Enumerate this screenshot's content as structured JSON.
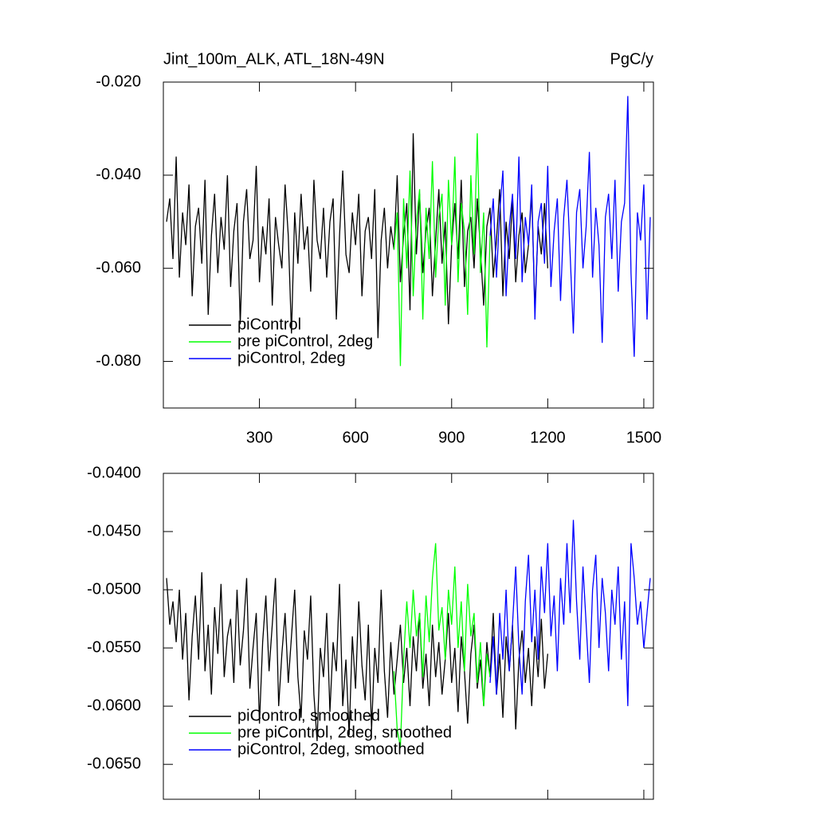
{
  "chart_data": [
    {
      "type": "line",
      "title": "Jint_100m_ALK, ATL_18N-49N",
      "units": "PgC/y",
      "xlim": [
        0,
        1530
      ],
      "ylim": [
        -0.09,
        -0.02
      ],
      "xticks": [
        300,
        600,
        900,
        1200,
        1500
      ],
      "xtick_labels": true,
      "yticks": [
        {
          "value": -0.02,
          "label": "-0.020"
        },
        {
          "value": -0.04,
          "label": "-0.040"
        },
        {
          "value": -0.06,
          "label": "-0.060"
        },
        {
          "value": -0.08,
          "label": "-0.080"
        }
      ],
      "legend": "lower left",
      "series": [
        {
          "name": "piControl",
          "color": "#000000",
          "x": [
            10,
            20,
            30,
            40,
            50,
            60,
            70,
            80,
            90,
            100,
            110,
            120,
            130,
            140,
            150,
            160,
            170,
            180,
            190,
            200,
            210,
            220,
            230,
            240,
            250,
            260,
            270,
            280,
            290,
            300,
            310,
            320,
            330,
            340,
            350,
            360,
            370,
            380,
            390,
            400,
            410,
            420,
            430,
            440,
            450,
            460,
            470,
            480,
            490,
            500,
            510,
            520,
            530,
            540,
            550,
            560,
            570,
            580,
            590,
            600,
            610,
            620,
            630,
            640,
            650,
            660,
            670,
            680,
            690,
            700,
            710,
            720,
            730,
            740,
            750,
            760,
            770,
            780,
            790,
            800,
            810,
            820,
            830,
            840,
            850,
            860,
            870,
            880,
            890,
            900,
            910,
            920,
            930,
            940,
            950,
            960,
            970,
            980,
            990,
            1000,
            1010,
            1020,
            1030,
            1040,
            1050,
            1060,
            1070,
            1080,
            1090,
            1100,
            1110,
            1120,
            1130,
            1140,
            1150,
            1160,
            1170,
            1180,
            1190,
            1200
          ],
          "values": [
            -0.05,
            -0.045,
            -0.058,
            -0.036,
            -0.062,
            -0.048,
            -0.055,
            -0.042,
            -0.066,
            -0.051,
            -0.047,
            -0.059,
            -0.041,
            -0.07,
            -0.053,
            -0.044,
            -0.061,
            -0.049,
            -0.056,
            -0.04,
            -0.064,
            -0.052,
            -0.046,
            -0.072,
            -0.05,
            -0.043,
            -0.058,
            -0.054,
            -0.038,
            -0.063,
            -0.051,
            -0.057,
            -0.045,
            -0.068,
            -0.049,
            -0.055,
            -0.06,
            -0.042,
            -0.053,
            -0.074,
            -0.048,
            -0.059,
            -0.044,
            -0.056,
            -0.051,
            -0.065,
            -0.041,
            -0.054,
            -0.058,
            -0.047,
            -0.062,
            -0.05,
            -0.045,
            -0.071,
            -0.053,
            -0.039,
            -0.057,
            -0.061,
            -0.048,
            -0.055,
            -0.044,
            -0.066,
            -0.052,
            -0.049,
            -0.058,
            -0.043,
            -0.075,
            -0.054,
            -0.047,
            -0.06,
            -0.051,
            -0.056,
            -0.04,
            -0.063,
            -0.053,
            -0.046,
            -0.069,
            -0.031,
            -0.057,
            -0.044,
            -0.061,
            -0.052,
            -0.047,
            -0.066,
            -0.054,
            -0.043,
            -0.059,
            -0.05,
            -0.072,
            -0.055,
            -0.046,
            -0.058,
            -0.041,
            -0.064,
            -0.052,
            -0.049,
            -0.06,
            -0.045,
            -0.056,
            -0.068,
            -0.051,
            -0.047,
            -0.062,
            -0.054,
            -0.043,
            -0.066,
            -0.05,
            -0.058,
            -0.045,
            -0.063,
            -0.053,
            -0.048,
            -0.061,
            -0.055,
            -0.044,
            -0.069,
            -0.051,
            -0.057,
            -0.046,
            -0.06
          ]
        },
        {
          "name": "pre piControl, 2deg",
          "color": "#00ff00",
          "x": [
            720,
            730,
            740,
            750,
            760,
            770,
            780,
            790,
            800,
            810,
            820,
            830,
            840,
            850,
            860,
            870,
            880,
            890,
            900,
            910,
            920,
            930,
            940,
            950,
            960,
            970,
            980,
            990,
            1000,
            1010,
            1020
          ],
          "values": [
            -0.056,
            -0.048,
            -0.081,
            -0.045,
            -0.06,
            -0.039,
            -0.066,
            -0.05,
            -0.043,
            -0.071,
            -0.047,
            -0.058,
            -0.037,
            -0.062,
            -0.049,
            -0.044,
            -0.068,
            -0.041,
            -0.055,
            -0.036,
            -0.063,
            -0.046,
            -0.052,
            -0.07,
            -0.04,
            -0.057,
            -0.031,
            -0.061,
            -0.048,
            -0.077,
            -0.053
          ]
        },
        {
          "name": "piControl, 2deg",
          "color": "#0000ff",
          "x": [
            1020,
            1030,
            1040,
            1050,
            1060,
            1070,
            1080,
            1090,
            1100,
            1110,
            1120,
            1130,
            1140,
            1150,
            1160,
            1170,
            1180,
            1190,
            1200,
            1210,
            1220,
            1230,
            1240,
            1250,
            1260,
            1270,
            1280,
            1290,
            1300,
            1310,
            1320,
            1330,
            1340,
            1350,
            1360,
            1370,
            1380,
            1390,
            1400,
            1410,
            1420,
            1430,
            1440,
            1450,
            1460,
            1470,
            1480,
            1490,
            1500,
            1510,
            1520
          ],
          "values": [
            -0.053,
            -0.045,
            -0.062,
            -0.048,
            -0.039,
            -0.066,
            -0.051,
            -0.044,
            -0.058,
            -0.036,
            -0.063,
            -0.049,
            -0.055,
            -0.042,
            -0.071,
            -0.05,
            -0.046,
            -0.059,
            -0.038,
            -0.064,
            -0.052,
            -0.045,
            -0.067,
            -0.049,
            -0.041,
            -0.057,
            -0.074,
            -0.048,
            -0.043,
            -0.06,
            -0.051,
            -0.035,
            -0.062,
            -0.047,
            -0.055,
            -0.076,
            -0.049,
            -0.044,
            -0.058,
            -0.041,
            -0.065,
            -0.05,
            -0.046,
            -0.023,
            -0.061,
            -0.079,
            -0.048,
            -0.054,
            -0.042,
            -0.071,
            -0.049
          ]
        }
      ]
    },
    {
      "type": "line",
      "xlim": [
        0,
        1530
      ],
      "ylim": [
        -0.068,
        -0.04
      ],
      "xticks": [
        300,
        600,
        900,
        1200,
        1500
      ],
      "xtick_labels": false,
      "yticks": [
        {
          "value": -0.04,
          "label": "-0.0400"
        },
        {
          "value": -0.045,
          "label": "-0.0450"
        },
        {
          "value": -0.05,
          "label": "-0.0500"
        },
        {
          "value": -0.055,
          "label": "-0.0550"
        },
        {
          "value": -0.06,
          "label": "-0.0600"
        },
        {
          "value": -0.065,
          "label": "-0.0650"
        }
      ],
      "legend": "lower left",
      "series": [
        {
          "name": "piControl, smoothed",
          "color": "#000000",
          "x": [
            10,
            20,
            30,
            40,
            50,
            60,
            70,
            80,
            90,
            100,
            110,
            120,
            130,
            140,
            150,
            160,
            170,
            180,
            190,
            200,
            210,
            220,
            230,
            240,
            250,
            260,
            270,
            280,
            290,
            300,
            310,
            320,
            330,
            340,
            350,
            360,
            370,
            380,
            390,
            400,
            410,
            420,
            430,
            440,
            450,
            460,
            470,
            480,
            490,
            500,
            510,
            520,
            530,
            540,
            550,
            560,
            570,
            580,
            590,
            600,
            610,
            620,
            630,
            640,
            650,
            660,
            670,
            680,
            690,
            700,
            710,
            720,
            730,
            740,
            750,
            760,
            770,
            780,
            790,
            800,
            810,
            820,
            830,
            840,
            850,
            860,
            870,
            880,
            890,
            900,
            910,
            920,
            930,
            940,
            950,
            960,
            970,
            980,
            990,
            1000,
            1010,
            1020,
            1030,
            1040,
            1050,
            1060,
            1070,
            1080,
            1090,
            1100,
            1110,
            1120,
            1130,
            1140,
            1150,
            1160,
            1170,
            1180,
            1190,
            1200
          ],
          "values": [
            -0.049,
            -0.053,
            -0.051,
            -0.0545,
            -0.05,
            -0.056,
            -0.052,
            -0.0595,
            -0.054,
            -0.0505,
            -0.056,
            -0.0485,
            -0.057,
            -0.053,
            -0.059,
            -0.0515,
            -0.0555,
            -0.0495,
            -0.0575,
            -0.054,
            -0.0525,
            -0.058,
            -0.05,
            -0.0565,
            -0.0535,
            -0.049,
            -0.0585,
            -0.055,
            -0.052,
            -0.0615,
            -0.0545,
            -0.0505,
            -0.057,
            -0.053,
            -0.049,
            -0.06,
            -0.0555,
            -0.052,
            -0.058,
            -0.054,
            -0.05,
            -0.0575,
            -0.061,
            -0.0535,
            -0.056,
            -0.0505,
            -0.059,
            -0.063,
            -0.055,
            -0.0575,
            -0.052,
            -0.0605,
            -0.0545,
            -0.057,
            -0.0495,
            -0.06,
            -0.056,
            -0.0625,
            -0.054,
            -0.0585,
            -0.051,
            -0.0565,
            -0.0595,
            -0.053,
            -0.062,
            -0.055,
            -0.058,
            -0.05,
            -0.057,
            -0.061,
            -0.0545,
            -0.059,
            -0.056,
            -0.053,
            -0.058,
            -0.055,
            -0.06,
            -0.054,
            -0.057,
            -0.052,
            -0.0585,
            -0.0555,
            -0.06,
            -0.053,
            -0.0575,
            -0.0545,
            -0.059,
            -0.056,
            -0.052,
            -0.058,
            -0.055,
            -0.0605,
            -0.054,
            -0.057,
            -0.0615,
            -0.0555,
            -0.053,
            -0.0585,
            -0.056,
            -0.06,
            -0.0545,
            -0.0575,
            -0.052,
            -0.059,
            -0.0555,
            -0.061,
            -0.054,
            -0.057,
            -0.053,
            -0.062,
            -0.056,
            -0.0535,
            -0.058,
            -0.055,
            -0.06,
            -0.054,
            -0.0575,
            -0.0525,
            -0.0585,
            -0.0555
          ]
        },
        {
          "name": "pre piControl, 2deg, smoothed",
          "color": "#00ff00",
          "x": [
            720,
            730,
            740,
            750,
            760,
            770,
            780,
            790,
            800,
            810,
            820,
            830,
            840,
            850,
            860,
            870,
            880,
            890,
            900,
            910,
            920,
            930,
            940,
            950,
            960,
            970,
            980,
            990,
            1000,
            1010,
            1020
          ],
          "values": [
            -0.057,
            -0.062,
            -0.0635,
            -0.056,
            -0.051,
            -0.055,
            -0.05,
            -0.054,
            -0.052,
            -0.0575,
            -0.0505,
            -0.0545,
            -0.049,
            -0.046,
            -0.0535,
            -0.0515,
            -0.056,
            -0.05,
            -0.053,
            -0.048,
            -0.055,
            -0.051,
            -0.057,
            -0.0495,
            -0.054,
            -0.052,
            -0.058,
            -0.0545,
            -0.06,
            -0.0555,
            -0.0575
          ]
        },
        {
          "name": "piControl, 2deg, smoothed",
          "color": "#0000ff",
          "x": [
            1020,
            1030,
            1040,
            1050,
            1060,
            1070,
            1080,
            1090,
            1100,
            1110,
            1120,
            1130,
            1140,
            1150,
            1160,
            1170,
            1180,
            1190,
            1200,
            1210,
            1220,
            1230,
            1240,
            1250,
            1260,
            1270,
            1280,
            1290,
            1300,
            1310,
            1320,
            1330,
            1340,
            1350,
            1360,
            1370,
            1380,
            1390,
            1400,
            1410,
            1420,
            1430,
            1440,
            1450,
            1460,
            1470,
            1480,
            1490,
            1500,
            1510,
            1520
          ],
          "values": [
            -0.058,
            -0.054,
            -0.059,
            -0.052,
            -0.056,
            -0.05,
            -0.057,
            -0.053,
            -0.048,
            -0.055,
            -0.059,
            -0.051,
            -0.047,
            -0.0545,
            -0.05,
            -0.056,
            -0.048,
            -0.052,
            -0.046,
            -0.054,
            -0.0505,
            -0.057,
            -0.049,
            -0.053,
            -0.046,
            -0.052,
            -0.044,
            -0.051,
            -0.056,
            -0.048,
            -0.053,
            -0.058,
            -0.05,
            -0.047,
            -0.055,
            -0.049,
            -0.052,
            -0.057,
            -0.05,
            -0.053,
            -0.048,
            -0.056,
            -0.051,
            -0.06,
            -0.046,
            -0.049,
            -0.053,
            -0.051,
            -0.055,
            -0.052,
            -0.049
          ]
        }
      ]
    }
  ]
}
